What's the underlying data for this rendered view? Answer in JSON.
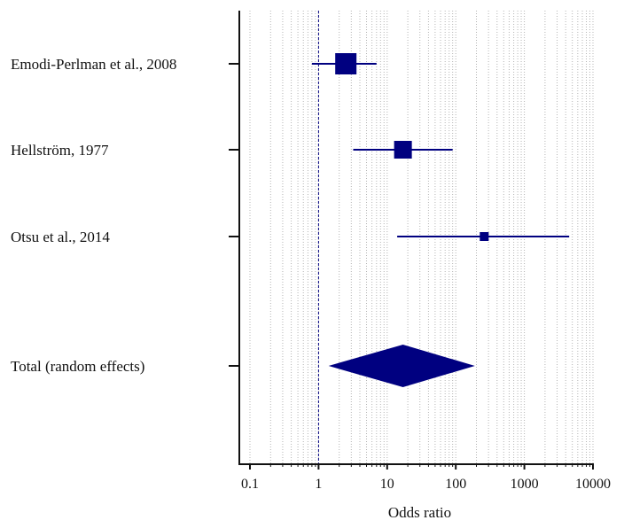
{
  "chart_data": {
    "type": "forest",
    "xlabel": "Odds ratio",
    "x_scale": "log",
    "xlim": [
      0.1,
      10000
    ],
    "x_ticks": [
      "0.1",
      "1",
      "10",
      "100",
      "1000",
      "10000"
    ],
    "reference_line": 1,
    "grid": true,
    "colors": {
      "marker": "#000080",
      "axis": "#111111",
      "grid": "#b4b4b4"
    },
    "studies": [
      {
        "label": "Emodi-Perlman et al., 2008",
        "or": 2.5,
        "ci_low": 0.8,
        "ci_high": 7
      },
      {
        "label": "Hellström, 1977",
        "or": 17,
        "ci_low": 3.2,
        "ci_high": 90
      },
      {
        "label": "Otsu et al., 2014",
        "or": 260,
        "ci_low": 14,
        "ci_high": 4500
      }
    ],
    "pooled": {
      "label": "Total (random effects)",
      "or": 17,
      "ci_low": 1.4,
      "ci_high": 190
    }
  }
}
